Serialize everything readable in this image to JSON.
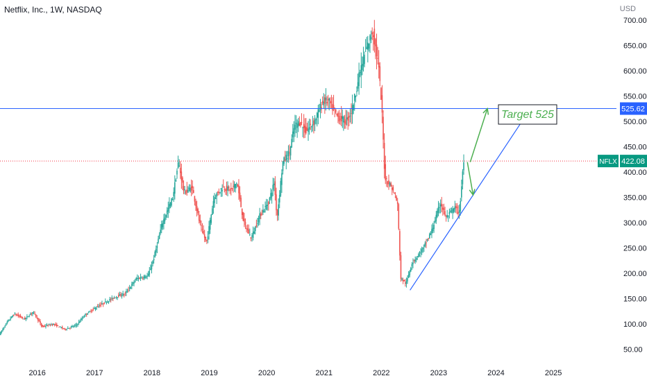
{
  "header": {
    "title": "Netflix, Inc., 1W, NASDAQ",
    "currency": "USD"
  },
  "colors": {
    "up": "#26a69a",
    "down": "#ef5350",
    "horizontal_line": "#2962ff",
    "price_line": "#f23645",
    "trend_line": "#2962ff",
    "arrow": "#4caf50",
    "axis_text": "#131722",
    "price_badge_bg": "#089981",
    "level_badge_bg": "#2962ff"
  },
  "chart_data": {
    "type": "candlestick",
    "symbol": "NFLX",
    "interval": "1W",
    "x_ticks": [
      "2016",
      "2017",
      "2018",
      "2019",
      "2020",
      "2021",
      "2022",
      "2023",
      "2024",
      "2025"
    ],
    "y_ticks": [
      "50.00",
      "100.00",
      "150.00",
      "200.00",
      "250.00",
      "300.00",
      "350.00",
      "400.00",
      "450.00",
      "500.00",
      "550.00",
      "600.00",
      "650.00",
      "700.00"
    ],
    "ylim": [
      25,
      740
    ],
    "xlim": [
      2015.35,
      2026.1
    ],
    "current_price": {
      "label": "NFLX",
      "value": "422.08",
      "numeric": 422.08
    },
    "horizontal_level": {
      "value": "525.62",
      "numeric": 525.62
    },
    "price_path": [
      [
        2015.36,
        80
      ],
      [
        2015.5,
        105
      ],
      [
        2015.62,
        120
      ],
      [
        2015.8,
        110
      ],
      [
        2015.95,
        125
      ],
      [
        2016.1,
        95
      ],
      [
        2016.3,
        100
      ],
      [
        2016.5,
        90
      ],
      [
        2016.7,
        98
      ],
      [
        2016.85,
        118
      ],
      [
        2017.0,
        130
      ],
      [
        2017.2,
        143
      ],
      [
        2017.4,
        155
      ],
      [
        2017.55,
        160
      ],
      [
        2017.75,
        190
      ],
      [
        2017.95,
        195
      ],
      [
        2018.05,
        230
      ],
      [
        2018.2,
        300
      ],
      [
        2018.38,
        350
      ],
      [
        2018.48,
        420
      ],
      [
        2018.58,
        360
      ],
      [
        2018.72,
        370
      ],
      [
        2018.85,
        300
      ],
      [
        2018.97,
        260
      ],
      [
        2019.1,
        350
      ],
      [
        2019.25,
        370
      ],
      [
        2019.4,
        365
      ],
      [
        2019.5,
        380
      ],
      [
        2019.62,
        300
      ],
      [
        2019.75,
        270
      ],
      [
        2019.9,
        315
      ],
      [
        2020.05,
        340
      ],
      [
        2020.15,
        380
      ],
      [
        2020.2,
        310
      ],
      [
        2020.3,
        420
      ],
      [
        2020.42,
        440
      ],
      [
        2020.5,
        490
      ],
      [
        2020.6,
        500
      ],
      [
        2020.7,
        480
      ],
      [
        2020.85,
        500
      ],
      [
        2021.0,
        540
      ],
      [
        2021.1,
        540
      ],
      [
        2021.25,
        510
      ],
      [
        2021.4,
        500
      ],
      [
        2021.5,
        520
      ],
      [
        2021.65,
        600
      ],
      [
        2021.75,
        640
      ],
      [
        2021.87,
        680
      ],
      [
        2021.97,
        610
      ],
      [
        2022.03,
        520
      ],
      [
        2022.08,
        390
      ],
      [
        2022.2,
        370
      ],
      [
        2022.3,
        340
      ],
      [
        2022.36,
        190
      ],
      [
        2022.45,
        180
      ],
      [
        2022.55,
        220
      ],
      [
        2022.75,
        250
      ],
      [
        2022.9,
        285
      ],
      [
        2023.05,
        340
      ],
      [
        2023.15,
        310
      ],
      [
        2023.3,
        330
      ],
      [
        2023.38,
        320
      ],
      [
        2023.45,
        420
      ]
    ],
    "annotations": {
      "target_text": "Target 525",
      "trendline": {
        "from": [
          2022.5,
          167
        ],
        "to": [
          2024.6,
          525.62
        ]
      },
      "arrow_up": {
        "from": [
          2023.55,
          420
        ],
        "to": [
          2023.85,
          525.62
        ]
      },
      "arrow_down": {
        "from": [
          2023.5,
          420
        ],
        "to": [
          2023.6,
          355
        ]
      }
    }
  }
}
